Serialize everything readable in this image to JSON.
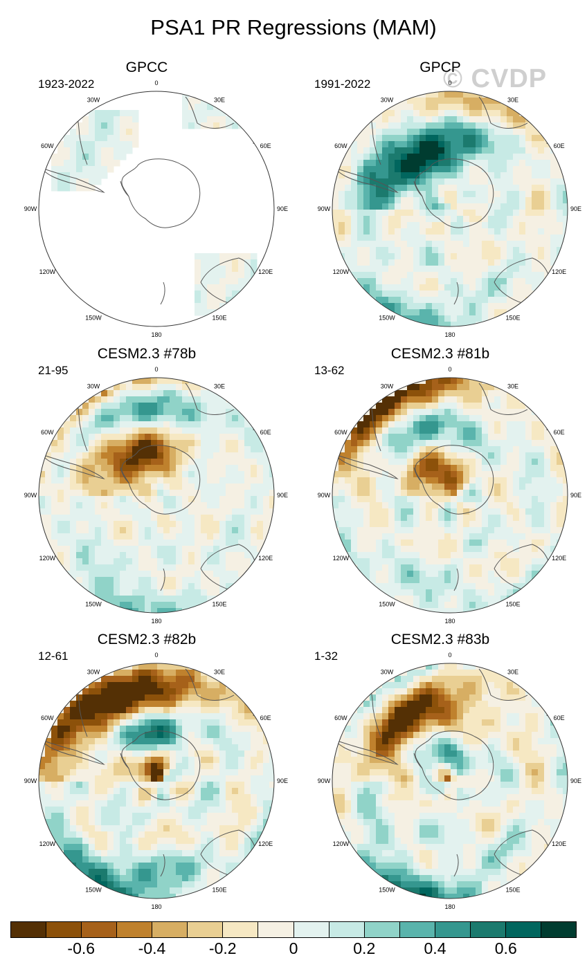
{
  "figure": {
    "title": "PSA1 PR Regressions (MAM)",
    "watermark": "© CVDP"
  },
  "panels": [
    {
      "title": "GPCC",
      "years": "1923-2022",
      "coverage": "partial",
      "pattern": [
        0.1,
        0.05,
        0.2,
        -0.1
      ]
    },
    {
      "title": "GPCP",
      "years": "1991-2022",
      "coverage": "full",
      "pattern": [
        0.6,
        -0.4,
        0.3,
        -0.3
      ]
    },
    {
      "title": "CESM2.3 #78b",
      "years": "21-95",
      "coverage": "full",
      "pattern": [
        -0.5,
        0.4,
        0.3,
        -0.2
      ]
    },
    {
      "title": "CESM2.3 #81b",
      "years": "13-62",
      "coverage": "full",
      "pattern": [
        -0.4,
        0.4,
        0.2,
        -0.3
      ]
    },
    {
      "title": "CESM2.3 #82b",
      "years": "12-61",
      "coverage": "full",
      "pattern": [
        -0.5,
        0.5,
        0.6,
        -0.4
      ]
    },
    {
      "title": "CESM2.3 #83b",
      "years": "1-32",
      "coverage": "full",
      "pattern": [
        -0.4,
        0.4,
        0.5,
        -0.4
      ]
    }
  ],
  "longitude_labels": [
    "0",
    "30E",
    "60E",
    "90E",
    "120E",
    "150E",
    "180",
    "150W",
    "120W",
    "90W",
    "60W",
    "30W"
  ],
  "colorbar": {
    "colors": [
      "#543005",
      "#8c510a",
      "#a6611a",
      "#bf812d",
      "#d7ae63",
      "#e9cf93",
      "#f6e8c3",
      "#f5f0e3",
      "#e3f2ef",
      "#c7eae5",
      "#90d3c8",
      "#5ab4ac",
      "#35978f",
      "#1b7a6e",
      "#01665e",
      "#003c30"
    ],
    "tick_labels": [
      "-0.6",
      "-0.4",
      "-0.2",
      "0",
      "0.2",
      "0.4",
      "0.6"
    ],
    "tick_values": [
      -0.6,
      -0.4,
      -0.2,
      0,
      0.2,
      0.4,
      0.6
    ],
    "range": [
      -0.8,
      0.8
    ]
  }
}
